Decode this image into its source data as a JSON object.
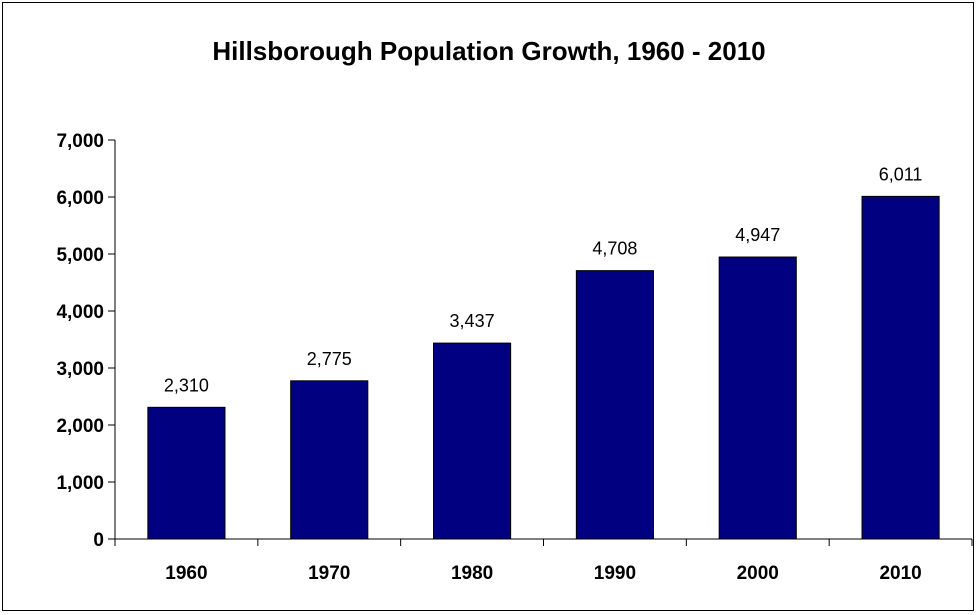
{
  "chart_data": {
    "type": "bar",
    "title": "Hillsborough Population Growth, 1960 - 2010",
    "xlabel": "",
    "ylabel": "",
    "categories": [
      "1960",
      "1970",
      "1980",
      "1990",
      "2000",
      "2010"
    ],
    "values": [
      2310,
      2775,
      3437,
      4708,
      4947,
      6011
    ],
    "data_labels": [
      "2,310",
      "2,775",
      "3,437",
      "4,708",
      "4,947",
      "6,011"
    ],
    "ylim": [
      0,
      7000
    ],
    "yticks": [
      0,
      1000,
      2000,
      3000,
      4000,
      5000,
      6000,
      7000
    ],
    "ytick_labels": [
      "0",
      "1,000",
      "2,000",
      "3,000",
      "4,000",
      "5,000",
      "6,000",
      "7,000"
    ],
    "grid": false,
    "legend": "none",
    "bar_color": "#000080"
  }
}
